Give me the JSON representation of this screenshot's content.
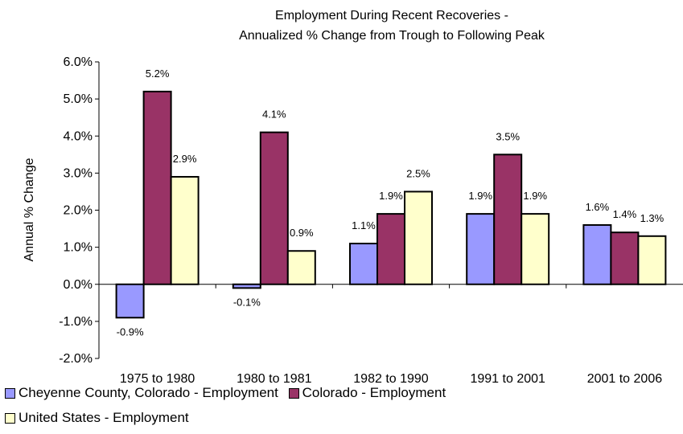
{
  "chart_data": {
    "type": "bar",
    "title": [
      "Employment During Recent Recoveries -",
      "Annualized % Change from Trough to Following Peak"
    ],
    "ylabel": "Annual % Change",
    "xlabel": "",
    "ylim": [
      -2.0,
      6.0
    ],
    "yticks": [
      "6.0%",
      "5.0%",
      "4.0%",
      "3.0%",
      "2.0%",
      "1.0%",
      "0.0%",
      "-1.0%",
      "-2.0%"
    ],
    "ytick_values": [
      6,
      5,
      4,
      3,
      2,
      1,
      0,
      -1,
      -2
    ],
    "categories": [
      "1975 to 1980",
      "1980 to 1981",
      "1982 to 1990",
      "1991 to 2001",
      "2001 to 2006"
    ],
    "series": [
      {
        "name": "Cheyenne County, Colorado - Employment",
        "color": "#9999ff",
        "values": [
          -0.9,
          -0.1,
          1.1,
          1.9,
          1.6
        ],
        "labels": [
          "-0.9%",
          "-0.1%",
          "1.1%",
          "1.9%",
          "1.6%"
        ]
      },
      {
        "name": "Colorado - Employment",
        "color": "#993366",
        "values": [
          5.2,
          4.1,
          1.9,
          3.5,
          1.4
        ],
        "labels": [
          "5.2%",
          "4.1%",
          "1.9%",
          "3.5%",
          "1.4%"
        ]
      },
      {
        "name": "United States - Employment",
        "color": "#ffffcc",
        "values": [
          2.9,
          0.9,
          2.5,
          1.9,
          1.3
        ],
        "labels": [
          "2.9%",
          "0.9%",
          "2.5%",
          "1.9%",
          "1.3%"
        ]
      }
    ],
    "grid": false,
    "legend_position": "bottom"
  }
}
